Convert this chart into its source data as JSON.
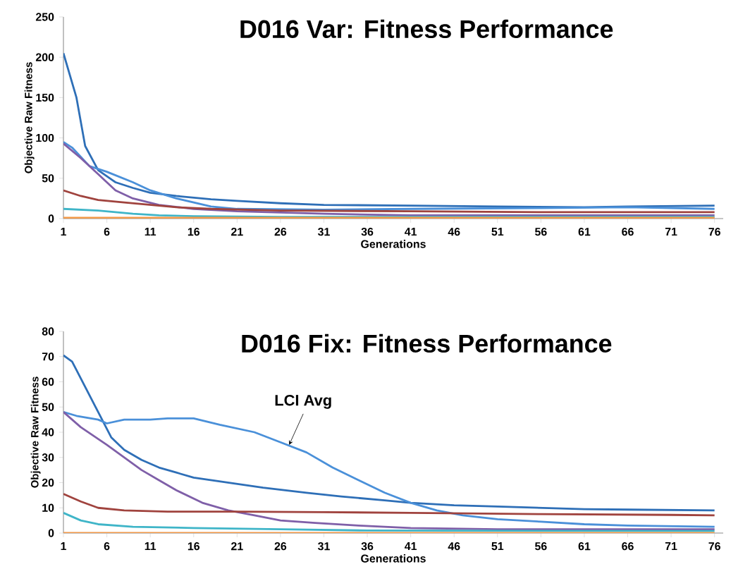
{
  "chart_data": [
    {
      "type": "line",
      "title": "D016 Var: Fitness Performance",
      "xlabel": "Generations",
      "ylabel": "Objective Raw Fitness",
      "xlim": [
        1,
        77
      ],
      "xticks": [
        1,
        6,
        11,
        16,
        21,
        26,
        31,
        36,
        41,
        46,
        51,
        56,
        61,
        66,
        71,
        76
      ],
      "ylim": [
        0,
        250
      ],
      "yticks": [
        0,
        50,
        100,
        150,
        200,
        250
      ],
      "marker": "none",
      "line_style": "solid",
      "series": [
        {
          "color": "#2e6fb7",
          "x": [
            1,
            2.5,
            3.5,
            5,
            7,
            9,
            11,
            14,
            18,
            21,
            26,
            31,
            41,
            51,
            61,
            66,
            76
          ],
          "values": [
            205,
            150,
            90,
            60,
            45,
            38,
            32,
            28,
            24,
            22,
            19,
            17,
            16,
            15,
            14,
            15,
            16
          ]
        },
        {
          "color": "#4a90d9",
          "x": [
            1,
            2,
            4,
            6,
            9,
            11,
            14,
            18,
            21,
            31,
            41,
            56,
            66,
            76
          ],
          "values": [
            95,
            88,
            65,
            58,
            45,
            35,
            25,
            15,
            12,
            11,
            12,
            13,
            14,
            12
          ]
        },
        {
          "color": "#7f5fa8",
          "x": [
            1,
            3,
            5,
            7,
            9,
            12,
            16,
            21,
            31,
            41,
            76
          ],
          "values": [
            93,
            75,
            55,
            35,
            25,
            17,
            12,
            9,
            6,
            4,
            4
          ]
        },
        {
          "color": "#a0433e",
          "x": [
            1,
            3,
            5,
            8,
            11,
            14,
            18,
            26,
            41,
            56,
            76
          ],
          "values": [
            35,
            28,
            23,
            20,
            17,
            14,
            12,
            10,
            9,
            8,
            8
          ]
        },
        {
          "color": "#3fb5c8",
          "x": [
            1,
            5,
            9,
            12,
            16,
            26,
            76
          ],
          "values": [
            12,
            10,
            6,
            4,
            3,
            2,
            2
          ]
        },
        {
          "color": "#f29a4a",
          "x": [
            1,
            76
          ],
          "values": [
            1,
            1
          ]
        }
      ]
    },
    {
      "type": "line",
      "title": "D016 Fix: Fitness Performance",
      "xlabel": "Generations",
      "ylabel": "Objective Raw Fitness",
      "xlim": [
        1,
        77
      ],
      "xticks": [
        1,
        6,
        11,
        16,
        21,
        26,
        31,
        36,
        41,
        46,
        51,
        56,
        61,
        66,
        71,
        76
      ],
      "ylim": [
        0,
        80
      ],
      "yticks": [
        0,
        10,
        20,
        30,
        40,
        50,
        60,
        70,
        80
      ],
      "marker": "none",
      "line_style": "solid",
      "annotations": [
        {
          "text": "LCI Avg",
          "x": 27,
          "y": 35
        }
      ],
      "series": [
        {
          "color": "#2e6fb7",
          "x": [
            1,
            2,
            3.5,
            5,
            6.5,
            8,
            10,
            12,
            14,
            16,
            20,
            24,
            29,
            33,
            38,
            41,
            46,
            51,
            56,
            61,
            66,
            76
          ],
          "values": [
            70.5,
            68,
            58,
            48,
            38,
            33,
            29,
            26,
            24,
            22,
            20,
            18,
            16,
            14.5,
            13,
            12,
            11,
            10.5,
            10,
            9.5,
            9.3,
            9
          ]
        },
        {
          "color": "#4a90d9",
          "x": [
            1,
            2.5,
            5,
            6,
            8,
            11,
            13,
            16,
            19,
            23,
            26,
            29,
            32,
            35,
            38,
            41,
            44,
            47,
            51,
            56,
            61,
            66,
            76
          ],
          "values": [
            48,
            46.5,
            45,
            43.5,
            45,
            45,
            45.5,
            45.5,
            43,
            40,
            36,
            32,
            26,
            21,
            16,
            12,
            9,
            7,
            5.5,
            4.5,
            3.5,
            3,
            2.5
          ]
        },
        {
          "color": "#7f5fa8",
          "x": [
            1,
            3,
            6,
            8,
            10,
            12,
            14,
            17,
            20,
            23,
            26,
            30,
            35,
            41,
            51,
            76
          ],
          "values": [
            48,
            42,
            35,
            30,
            25,
            21,
            17,
            12,
            9,
            7,
            5,
            4,
            3,
            2,
            1.5,
            1.5
          ]
        },
        {
          "color": "#a0433e",
          "x": [
            1,
            3,
            5,
            8,
            13,
            21,
            31,
            41,
            56,
            71,
            76
          ],
          "values": [
            15.5,
            12.5,
            10,
            9,
            8.5,
            8.5,
            8.3,
            8,
            7.5,
            7.2,
            7
          ]
        },
        {
          "color": "#3fb5c8",
          "x": [
            1,
            3,
            5,
            9,
            16,
            26,
            36,
            76
          ],
          "values": [
            8,
            5,
            3.5,
            2.5,
            2,
            1.5,
            1,
            0.8
          ]
        },
        {
          "color": "#f29a4a",
          "x": [
            1,
            76
          ],
          "values": [
            0,
            0
          ]
        }
      ]
    }
  ]
}
